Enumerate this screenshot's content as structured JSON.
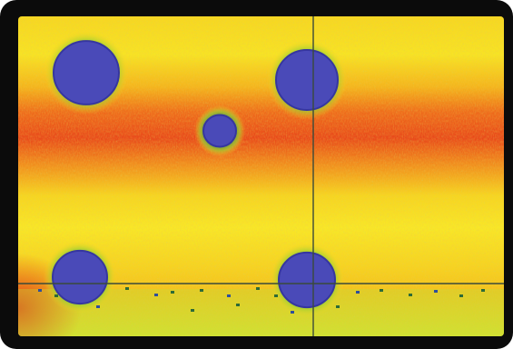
{
  "image": {
    "kind": "false-color thermal/intensity map",
    "palette": {
      "hot": "#e8401a",
      "warm": "#f07a1c",
      "mid": "#f6c21a",
      "cool": "#f7e625",
      "low": "#9fd033",
      "edge": "#3fa24a",
      "spot": "#4a4ab8",
      "spot_dark": "#3636a0",
      "crosshair": "#3b4a3a",
      "frame": "#0b0b0b"
    },
    "crosshair": {
      "visible": true
    },
    "spot_count": 5
  }
}
